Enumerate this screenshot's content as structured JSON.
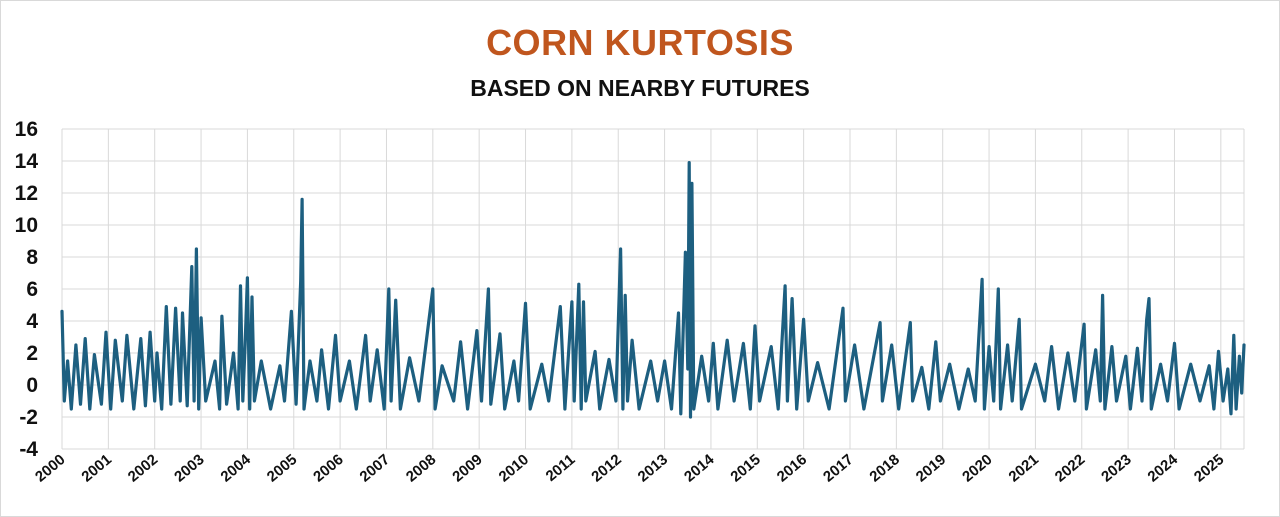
{
  "chart_data": {
    "type": "line",
    "title": "CORN KURTOSIS",
    "subtitle": "BASED ON NEARBY FUTURES",
    "xlabel": "",
    "ylabel": "",
    "ylim": [
      -4,
      16
    ],
    "yticks": [
      "16",
      "14",
      "12",
      "10",
      "8",
      "6",
      "4",
      "2",
      "0",
      "-2",
      "-4"
    ],
    "xlim": [
      2000,
      2025.5
    ],
    "xticks": [
      "2000",
      "2001",
      "2002",
      "2003",
      "2004",
      "2005",
      "2006",
      "2007",
      "2008",
      "2009",
      "2010",
      "2011",
      "2012",
      "2013",
      "2014",
      "2015",
      "2016",
      "2017",
      "2018",
      "2019",
      "2020",
      "2021",
      "2022",
      "2023",
      "2024",
      "2025"
    ],
    "grid": true,
    "legend": "none",
    "colors": {
      "line": "#1d5f80",
      "title": "#c0561e",
      "grid": "#d9d9d9"
    },
    "series": [
      {
        "values": [
          [
            2000.0,
            4.6
          ],
          [
            2000.05,
            -1.0
          ],
          [
            2000.12,
            1.5
          ],
          [
            2000.2,
            -1.5
          ],
          [
            2000.3,
            2.5
          ],
          [
            2000.4,
            -1.2
          ],
          [
            2000.5,
            2.9
          ],
          [
            2000.6,
            -1.5
          ],
          [
            2000.7,
            1.9
          ],
          [
            2000.85,
            -1.2
          ],
          [
            2000.95,
            3.3
          ],
          [
            2001.05,
            -1.5
          ],
          [
            2001.15,
            2.8
          ],
          [
            2001.3,
            -1.0
          ],
          [
            2001.4,
            3.1
          ],
          [
            2001.55,
            -1.5
          ],
          [
            2001.7,
            2.9
          ],
          [
            2001.8,
            -1.3
          ],
          [
            2001.9,
            3.3
          ],
          [
            2002.0,
            -1.0
          ],
          [
            2002.05,
            2.0
          ],
          [
            2002.15,
            -1.5
          ],
          [
            2002.25,
            4.9
          ],
          [
            2002.35,
            -1.2
          ],
          [
            2002.45,
            4.8
          ],
          [
            2002.55,
            -1.0
          ],
          [
            2002.6,
            4.5
          ],
          [
            2002.7,
            -1.3
          ],
          [
            2002.8,
            7.4
          ],
          [
            2002.85,
            -1.0
          ],
          [
            2002.9,
            8.5
          ],
          [
            2002.95,
            -1.5
          ],
          [
            2003.0,
            4.2
          ],
          [
            2003.1,
            -1.0
          ],
          [
            2003.3,
            1.5
          ],
          [
            2003.4,
            -1.5
          ],
          [
            2003.45,
            4.3
          ],
          [
            2003.55,
            -1.2
          ],
          [
            2003.7,
            2.0
          ],
          [
            2003.8,
            -1.5
          ],
          [
            2003.85,
            6.2
          ],
          [
            2003.9,
            -1.0
          ],
          [
            2003.95,
            2.5
          ],
          [
            2004.0,
            6.7
          ],
          [
            2004.05,
            -1.5
          ],
          [
            2004.1,
            5.5
          ],
          [
            2004.15,
            -1.0
          ],
          [
            2004.3,
            1.5
          ],
          [
            2004.5,
            -1.5
          ],
          [
            2004.7,
            1.2
          ],
          [
            2004.8,
            -1.0
          ],
          [
            2004.95,
            4.6
          ],
          [
            2005.05,
            -1.2
          ],
          [
            2005.15,
            6.5
          ],
          [
            2005.18,
            11.6
          ],
          [
            2005.22,
            -1.5
          ],
          [
            2005.35,
            1.5
          ],
          [
            2005.5,
            -1.0
          ],
          [
            2005.6,
            2.2
          ],
          [
            2005.75,
            -1.5
          ],
          [
            2005.9,
            3.1
          ],
          [
            2006.0,
            -1.0
          ],
          [
            2006.2,
            1.5
          ],
          [
            2006.35,
            -1.5
          ],
          [
            2006.55,
            3.1
          ],
          [
            2006.65,
            -1.0
          ],
          [
            2006.8,
            2.2
          ],
          [
            2006.95,
            -1.5
          ],
          [
            2007.05,
            6.0
          ],
          [
            2007.1,
            -1.0
          ],
          [
            2007.2,
            5.3
          ],
          [
            2007.3,
            -1.5
          ],
          [
            2007.5,
            1.7
          ],
          [
            2007.7,
            -1.0
          ],
          [
            2008.0,
            6.0
          ],
          [
            2008.05,
            -1.5
          ],
          [
            2008.2,
            1.2
          ],
          [
            2008.45,
            -1.0
          ],
          [
            2008.6,
            2.7
          ],
          [
            2008.75,
            -1.5
          ],
          [
            2008.95,
            3.4
          ],
          [
            2009.05,
            -1.0
          ],
          [
            2009.2,
            6.0
          ],
          [
            2009.25,
            -1.2
          ],
          [
            2009.45,
            3.2
          ],
          [
            2009.55,
            -1.5
          ],
          [
            2009.75,
            1.5
          ],
          [
            2009.85,
            -1.0
          ],
          [
            2010.0,
            5.1
          ],
          [
            2010.1,
            -1.5
          ],
          [
            2010.35,
            1.3
          ],
          [
            2010.5,
            -1.0
          ],
          [
            2010.75,
            4.9
          ],
          [
            2010.85,
            -1.5
          ],
          [
            2011.0,
            5.2
          ],
          [
            2011.05,
            -1.0
          ],
          [
            2011.15,
            6.3
          ],
          [
            2011.2,
            -1.5
          ],
          [
            2011.25,
            5.2
          ],
          [
            2011.3,
            -1.0
          ],
          [
            2011.5,
            2.1
          ],
          [
            2011.6,
            -1.5
          ],
          [
            2011.8,
            1.6
          ],
          [
            2011.95,
            -1.0
          ],
          [
            2012.05,
            8.5
          ],
          [
            2012.1,
            -1.5
          ],
          [
            2012.15,
            5.6
          ],
          [
            2012.2,
            -1.0
          ],
          [
            2012.3,
            2.8
          ],
          [
            2012.45,
            -1.5
          ],
          [
            2012.7,
            1.5
          ],
          [
            2012.85,
            -1.0
          ],
          [
            2013.0,
            1.5
          ],
          [
            2013.15,
            -1.5
          ],
          [
            2013.3,
            4.5
          ],
          [
            2013.35,
            -1.8
          ],
          [
            2013.45,
            8.3
          ],
          [
            2013.5,
            1.0
          ],
          [
            2013.53,
            13.9
          ],
          [
            2013.56,
            -2.0
          ],
          [
            2013.59,
            12.6
          ],
          [
            2013.63,
            -1.5
          ],
          [
            2013.8,
            1.8
          ],
          [
            2013.95,
            -1.0
          ],
          [
            2014.05,
            2.6
          ],
          [
            2014.15,
            -1.5
          ],
          [
            2014.35,
            2.8
          ],
          [
            2014.5,
            -1.0
          ],
          [
            2014.7,
            2.6
          ],
          [
            2014.85,
            -1.5
          ],
          [
            2014.95,
            3.7
          ],
          [
            2015.05,
            -1.0
          ],
          [
            2015.3,
            2.4
          ],
          [
            2015.45,
            -1.5
          ],
          [
            2015.6,
            6.2
          ],
          [
            2015.65,
            -1.0
          ],
          [
            2015.75,
            5.4
          ],
          [
            2015.85,
            -1.5
          ],
          [
            2016.0,
            4.1
          ],
          [
            2016.1,
            -1.0
          ],
          [
            2016.3,
            1.4
          ],
          [
            2016.55,
            -1.5
          ],
          [
            2016.85,
            4.8
          ],
          [
            2016.9,
            -1.0
          ],
          [
            2017.1,
            2.5
          ],
          [
            2017.3,
            -1.5
          ],
          [
            2017.65,
            3.9
          ],
          [
            2017.7,
            -1.0
          ],
          [
            2017.9,
            2.5
          ],
          [
            2018.05,
            -1.5
          ],
          [
            2018.3,
            3.9
          ],
          [
            2018.35,
            -1.0
          ],
          [
            2018.55,
            1.1
          ],
          [
            2018.7,
            -1.5
          ],
          [
            2018.85,
            2.7
          ],
          [
            2018.95,
            -1.0
          ],
          [
            2019.15,
            1.3
          ],
          [
            2019.35,
            -1.5
          ],
          [
            2019.55,
            1.0
          ],
          [
            2019.7,
            -1.0
          ],
          [
            2019.85,
            6.6
          ],
          [
            2019.9,
            -1.5
          ],
          [
            2020.0,
            2.4
          ],
          [
            2020.1,
            -1.0
          ],
          [
            2020.2,
            6.0
          ],
          [
            2020.25,
            -1.5
          ],
          [
            2020.4,
            2.5
          ],
          [
            2020.5,
            -1.0
          ],
          [
            2020.65,
            4.1
          ],
          [
            2020.7,
            -1.5
          ],
          [
            2021.0,
            1.3
          ],
          [
            2021.2,
            -1.0
          ],
          [
            2021.35,
            2.4
          ],
          [
            2021.5,
            -1.5
          ],
          [
            2021.7,
            2.0
          ],
          [
            2021.85,
            -1.0
          ],
          [
            2022.05,
            3.8
          ],
          [
            2022.1,
            -1.5
          ],
          [
            2022.3,
            2.2
          ],
          [
            2022.4,
            -1.0
          ],
          [
            2022.45,
            5.6
          ],
          [
            2022.5,
            -1.5
          ],
          [
            2022.65,
            2.4
          ],
          [
            2022.75,
            -1.0
          ],
          [
            2022.95,
            1.8
          ],
          [
            2023.05,
            -1.5
          ],
          [
            2023.2,
            2.3
          ],
          [
            2023.3,
            -1.0
          ],
          [
            2023.4,
            4.1
          ],
          [
            2023.45,
            5.4
          ],
          [
            2023.5,
            -1.5
          ],
          [
            2023.7,
            1.3
          ],
          [
            2023.85,
            -1.0
          ],
          [
            2024.0,
            2.6
          ],
          [
            2024.1,
            -1.5
          ],
          [
            2024.35,
            1.3
          ],
          [
            2024.55,
            -1.0
          ],
          [
            2024.75,
            1.2
          ],
          [
            2024.85,
            -1.5
          ],
          [
            2024.95,
            2.1
          ],
          [
            2025.05,
            -1.0
          ],
          [
            2025.15,
            1.0
          ],
          [
            2025.22,
            -1.8
          ],
          [
            2025.28,
            3.1
          ],
          [
            2025.33,
            -1.5
          ],
          [
            2025.4,
            1.8
          ],
          [
            2025.45,
            -0.5
          ],
          [
            2025.5,
            2.5
          ]
        ]
      }
    ]
  }
}
